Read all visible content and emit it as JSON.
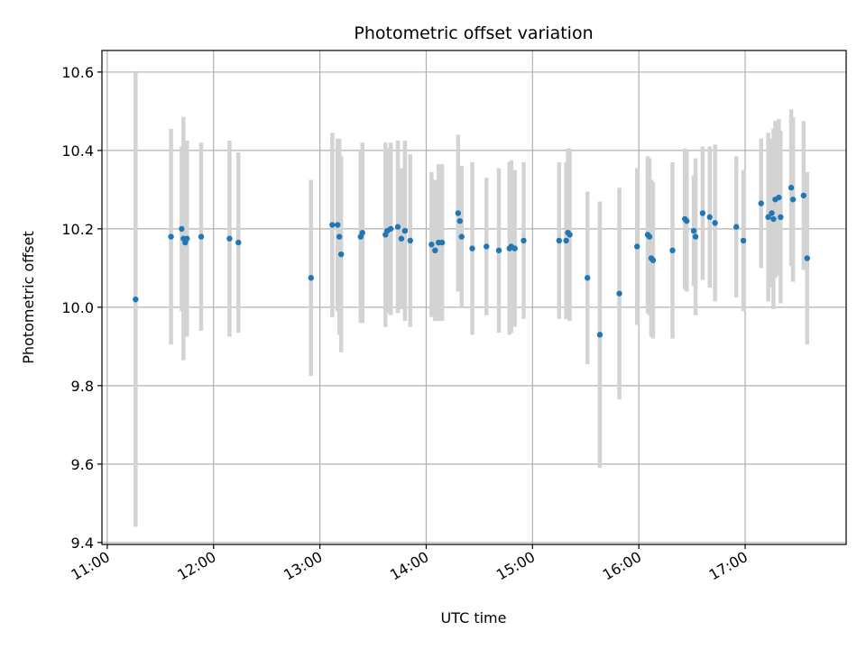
{
  "chart_data": {
    "type": "scatter",
    "title": "Photometric offset variation",
    "xlabel": "UTC time",
    "ylabel": "Photometric offset",
    "x_tick_labels": [
      "11:00",
      "12:00",
      "13:00",
      "14:00",
      "15:00",
      "16:00",
      "17:00"
    ],
    "y_tick_labels": [
      "9.4",
      "9.6",
      "9.8",
      "10.0",
      "10.2",
      "10.4",
      "10.6"
    ],
    "xlim": [
      "10:57",
      "17:57"
    ],
    "ylim": [
      9.395,
      10.655
    ],
    "grid": true,
    "colors": {
      "points": "#1f77b4",
      "errorbars": "#d3d3d3",
      "grid": "#b0b0b0"
    },
    "series": [
      {
        "x": [
          "11:16",
          "11:36",
          "11:42",
          "11:43",
          "11:44",
          "11:45",
          "11:53",
          "12:09",
          "12:14",
          "12:55",
          "13:07",
          "13:10",
          "13:11",
          "13:12",
          "13:23",
          "13:24",
          "13:37",
          "13:38",
          "13:40",
          "13:44",
          "13:46",
          "13:48",
          "13:51",
          "14:03",
          "14:05",
          "14:07",
          "14:09",
          "14:18",
          "14:19",
          "14:20",
          "14:26",
          "14:34",
          "14:41",
          "14:47",
          "14:48",
          "14:50",
          "14:55",
          "15:15",
          "15:19",
          "15:20",
          "15:21",
          "15:31",
          "15:38",
          "15:49",
          "15:59",
          "16:05",
          "16:06",
          "16:07",
          "16:08",
          "16:19",
          "16:26",
          "16:27",
          "16:31",
          "16:32",
          "16:36",
          "16:40",
          "16:43",
          "16:55",
          "16:59",
          "17:09",
          "17:13",
          "17:15",
          "17:16",
          "17:17",
          "17:19",
          "17:20",
          "17:26",
          "17:27",
          "17:33",
          "17:35"
        ],
        "y": [
          10.02,
          10.18,
          10.2,
          10.175,
          10.165,
          10.175,
          10.18,
          10.175,
          10.165,
          10.075,
          10.21,
          10.21,
          10.18,
          10.135,
          10.18,
          10.19,
          10.185,
          10.195,
          10.2,
          10.205,
          10.175,
          10.195,
          10.17,
          10.16,
          10.145,
          10.165,
          10.165,
          10.24,
          10.22,
          10.18,
          10.15,
          10.155,
          10.145,
          10.15,
          10.155,
          10.15,
          10.17,
          10.17,
          10.17,
          10.19,
          10.185,
          10.075,
          9.93,
          10.035,
          10.155,
          10.185,
          10.18,
          10.125,
          10.12,
          10.145,
          10.225,
          10.22,
          10.195,
          10.18,
          10.24,
          10.23,
          10.215,
          10.205,
          10.17,
          10.265,
          10.23,
          10.24,
          10.225,
          10.275,
          10.28,
          10.23,
          10.305,
          10.275,
          10.285,
          10.125
        ],
        "yerr": [
          0.58,
          0.275,
          0.21,
          0.31,
          0.24,
          0.25,
          0.24,
          0.25,
          0.23,
          0.25,
          0.235,
          0.22,
          0.25,
          0.25,
          0.22,
          0.23,
          0.235,
          0.21,
          0.22,
          0.22,
          0.18,
          0.23,
          0.22,
          0.185,
          0.18,
          0.2,
          0.2,
          0.2,
          0.12,
          0.18,
          0.22,
          0.175,
          0.21,
          0.22,
          0.22,
          0.2,
          0.2,
          0.2,
          0.2,
          0.215,
          0.22,
          0.22,
          0.34,
          0.27,
          0.2,
          0.2,
          0.2,
          0.2,
          0.2,
          0.225,
          0.18,
          0.18,
          0.14,
          0.2,
          0.17,
          0.18,
          0.2,
          0.18,
          0.18,
          0.165,
          0.215,
          0.19,
          0.23,
          0.2,
          0.2,
          0.22,
          0.2,
          0.21,
          0.19,
          0.22
        ]
      }
    ]
  }
}
